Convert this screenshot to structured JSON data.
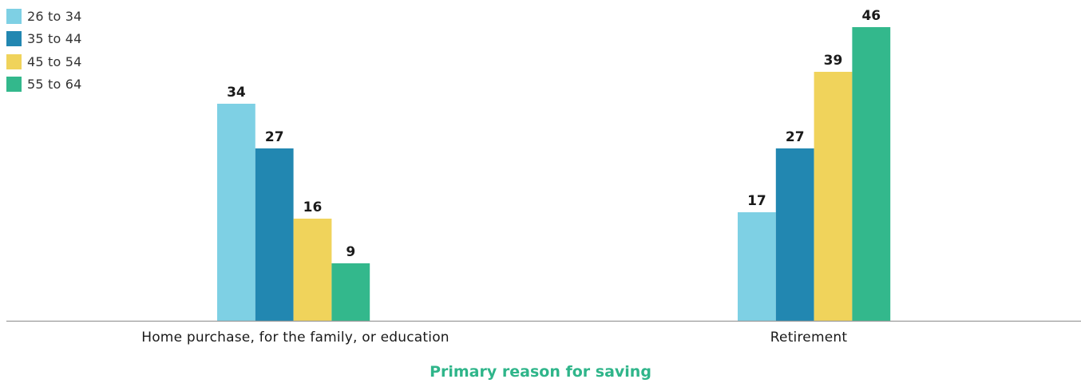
{
  "chart_data": {
    "type": "bar",
    "categories": [
      "Home purchase, for the family, or education",
      "Retirement"
    ],
    "series": [
      {
        "name": "26 to 34",
        "color": "#7ed0e4",
        "values": [
          34,
          17
        ]
      },
      {
        "name": "35 to 44",
        "color": "#2287b1",
        "values": [
          27,
          27
        ]
      },
      {
        "name": "45 to 54",
        "color": "#f0d35b",
        "values": [
          16,
          39
        ]
      },
      {
        "name": "55 to 64",
        "color": "#33b88c",
        "values": [
          9,
          46
        ]
      }
    ],
    "xlabel": "Primary reason for saving",
    "ylabel": "",
    "ylim": [
      0,
      46
    ],
    "grid": false,
    "legend_position": "top-left",
    "data_labels": true
  }
}
